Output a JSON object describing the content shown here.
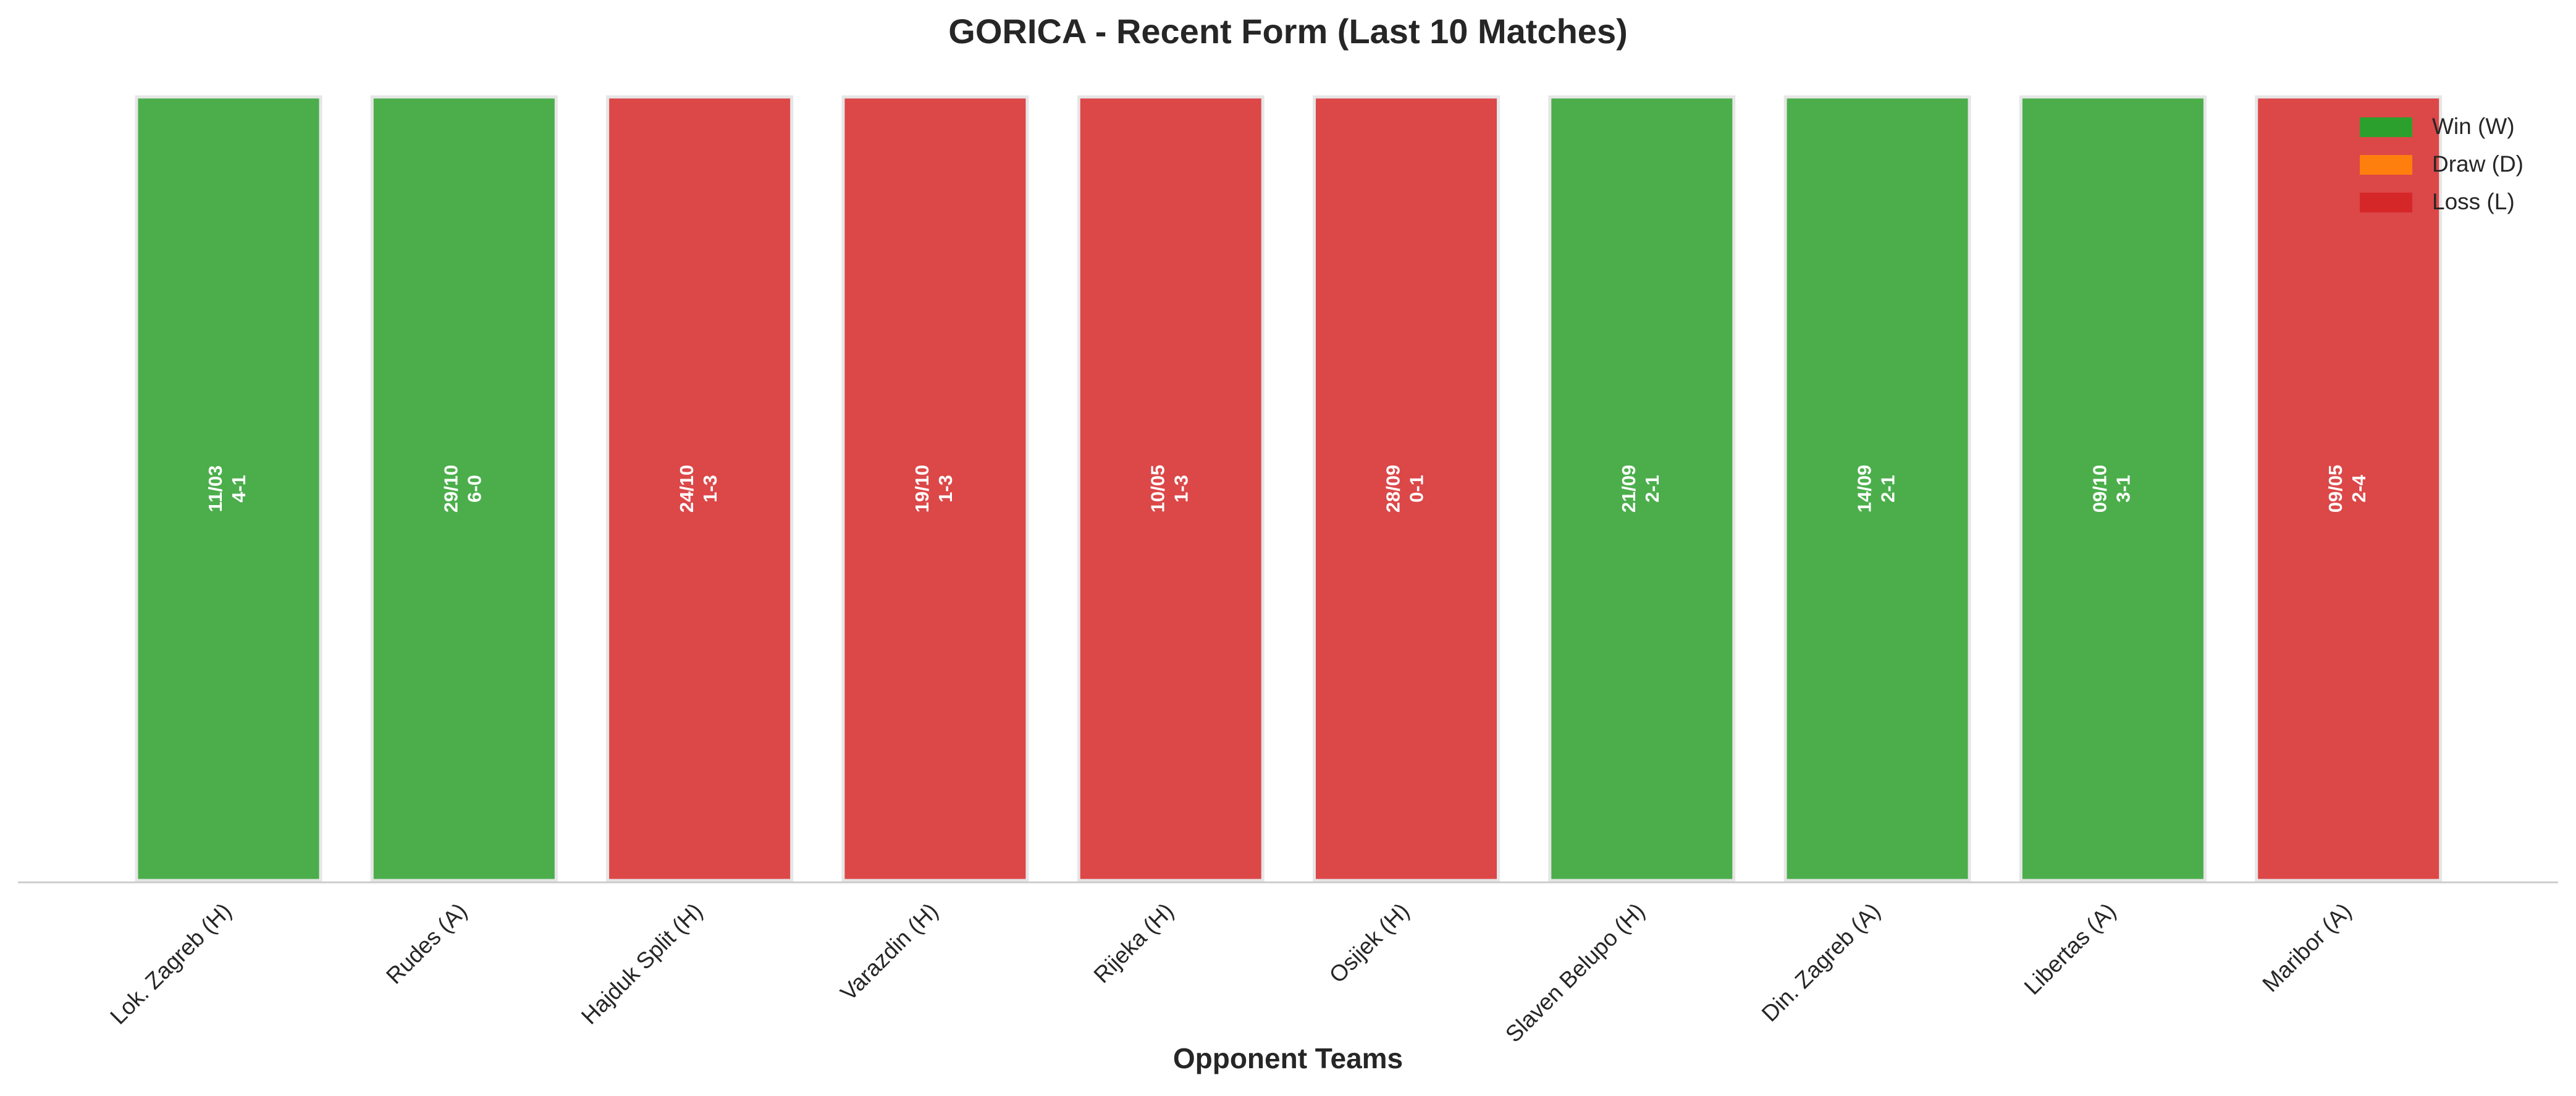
{
  "chart_data": {
    "type": "bar",
    "title": "GORICA - Recent Form (Last 10 Matches)",
    "x_label": "Opponent Teams",
    "categories": [
      "Lok. Zagreb (H)",
      "Rudes (A)",
      "Hajduk Split (H)",
      "Varazdin (H)",
      "Rijeka (H)",
      "Osijek (H)",
      "Slaven Belupo (H)",
      "Din. Zagreb (A)",
      "Libertas (A)",
      "Maribor (A)"
    ],
    "values": [
      1,
      1,
      1,
      1,
      1,
      1,
      1,
      1,
      1,
      1
    ],
    "dates": [
      "11/03",
      "29/10",
      "24/10",
      "19/10",
      "10/05",
      "28/09",
      "21/09",
      "14/09",
      "09/10",
      "09/05"
    ],
    "scores": [
      "4-1",
      "6-0",
      "1-3",
      "1-3",
      "1-3",
      "0-1",
      "2-1",
      "2-1",
      "3-1",
      "2-4"
    ],
    "colors": [
      "#2ca02c",
      "#2ca02c",
      "#d62728",
      "#d62728",
      "#d62728",
      "#d62728",
      "#2ca02c",
      "#2ca02c",
      "#2ca02c",
      "#d62728"
    ],
    "ylim": [
      0,
      1
    ],
    "legend": [
      {
        "name": "Win (W)",
        "color": "#2ca02c"
      },
      {
        "name": "Draw (D)",
        "color": "#ff7f0e"
      },
      {
        "name": "Loss (L)",
        "color": "#d62728"
      }
    ],
    "legend_position": "upper right"
  }
}
